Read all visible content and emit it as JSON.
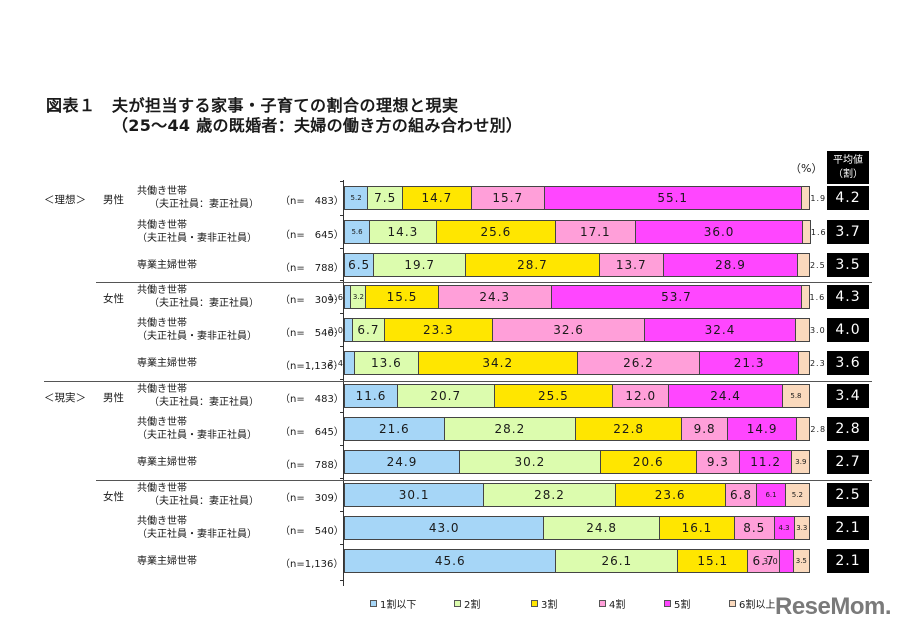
{
  "title": {
    "figure": "図表１",
    "main": "夫が担当する家事・子育ての割合の理想と現実",
    "sub": "（25～44 歳の既婚者：夫婦の働き方の組み合わせ別）"
  },
  "unit_label": "（%）",
  "avg_header": [
    "平均値",
    "（割）"
  ],
  "colors": {
    "c1": "#a6d6f7",
    "c2": "#dcfcae",
    "c3": "#ffe600",
    "c4": "#ff9fd9",
    "c5": "#ff46ff",
    "c6": "#fad9bd"
  },
  "legend": [
    {
      "label": "1割以下",
      "color": "#a6d6f7"
    },
    {
      "label": "2割",
      "color": "#dcfcae"
    },
    {
      "label": "3割",
      "color": "#ffe600"
    },
    {
      "label": "4割",
      "color": "#ff9fd9"
    },
    {
      "label": "5割",
      "color": "#ff46ff"
    },
    {
      "label": "6割以上",
      "color": "#fad9bd"
    }
  ],
  "logo": "ReseMom.",
  "sections": [
    {
      "label": "＜理想＞",
      "genders": [
        {
          "label": "男性"
        },
        {
          "label": "女性"
        }
      ]
    },
    {
      "label": "＜現実＞",
      "genders": [
        {
          "label": "男性"
        },
        {
          "label": "女性"
        }
      ]
    }
  ],
  "rows": [
    {
      "cat1": "共働き世帯",
      "cat2": "（夫正社員：妻正社員）",
      "n": "（n=　483）",
      "values": [
        5.2,
        7.5,
        14.7,
        15.7,
        55.1,
        1.9
      ],
      "labels": [
        "5.2",
        "7.5",
        "14.7",
        "15.7",
        "55.1",
        "1.9"
      ],
      "avg": "4.2"
    },
    {
      "cat1": "共働き世帯",
      "cat2": "（夫正社員・妻非正社員）",
      "n": "（n=　645）",
      "values": [
        5.6,
        14.3,
        25.6,
        17.1,
        36.0,
        1.6
      ],
      "labels": [
        "5.6",
        "14.3",
        "25.6",
        "17.1",
        "36.0",
        "1.6"
      ],
      "avg": "3.7"
    },
    {
      "cat1": "専業主婦世帯",
      "cat2": "",
      "n": "（n=　788）",
      "values": [
        6.5,
        19.7,
        28.7,
        13.7,
        28.9,
        2.5
      ],
      "labels": [
        "6.5",
        "19.7",
        "28.7",
        "13.7",
        "28.9",
        "2.5"
      ],
      "avg": "3.5"
    },
    {
      "cat1": "共働き世帯",
      "cat2": "（夫正社員：妻正社員）",
      "n": "（n=　309）",
      "values": [
        1.6,
        3.2,
        15.5,
        24.3,
        53.7,
        1.6
      ],
      "labels": [
        "1.6",
        "3.2",
        "15.5",
        "24.3",
        "53.7",
        "1.6"
      ],
      "avg": "4.3"
    },
    {
      "cat1": "共働き世帯",
      "cat2": "（夫正社員・妻非正社員）",
      "n": "（n=　540）",
      "values": [
        2.0,
        6.7,
        23.3,
        32.6,
        32.4,
        3.0
      ],
      "labels": [
        "2.0",
        "6.7",
        "23.3",
        "32.6",
        "32.4",
        "3.0"
      ],
      "avg": "4.0"
    },
    {
      "cat1": "専業主婦世帯",
      "cat2": "",
      "n": "（n=1,136）",
      "values": [
        2.4,
        13.6,
        34.2,
        26.2,
        21.3,
        2.3
      ],
      "labels": [
        "2.4",
        "13.6",
        "34.2",
        "26.2",
        "21.3",
        "2.3"
      ],
      "avg": "3.6"
    },
    {
      "cat1": "共働き世帯",
      "cat2": "（夫正社員：妻正社員）",
      "n": "（n=　483）",
      "values": [
        11.6,
        20.7,
        25.5,
        12.0,
        24.4,
        5.8
      ],
      "labels": [
        "11.6",
        "20.7",
        "25.5",
        "12.0",
        "24.4",
        "5.8"
      ],
      "avg": "3.4"
    },
    {
      "cat1": "共働き世帯",
      "cat2": "（夫正社員・妻非正社員）",
      "n": "（n=　645）",
      "values": [
        21.6,
        28.2,
        22.8,
        9.8,
        14.9,
        2.8
      ],
      "labels": [
        "21.6",
        "28.2",
        "22.8",
        "9.8",
        "14.9",
        "2.8"
      ],
      "avg": "2.8"
    },
    {
      "cat1": "専業主婦世帯",
      "cat2": "",
      "n": "（n=　788）",
      "values": [
        24.9,
        30.2,
        20.6,
        9.3,
        11.2,
        3.9
      ],
      "labels": [
        "24.9",
        "30.2",
        "20.6",
        "9.3",
        "11.2",
        "3.9"
      ],
      "avg": "2.7"
    },
    {
      "cat1": "共働き世帯",
      "cat2": "（夫正社員：妻正社員）",
      "n": "（n=　309）",
      "values": [
        30.1,
        28.2,
        23.6,
        6.8,
        6.1,
        5.2
      ],
      "labels": [
        "30.1",
        "28.2",
        "23.6",
        "6.8",
        "6.1",
        "5.2"
      ],
      "avg": "2.5"
    },
    {
      "cat1": "共働き世帯",
      "cat2": "（夫正社員・妻非正社員）",
      "n": "（n=　540）",
      "values": [
        43.0,
        24.8,
        16.1,
        8.5,
        4.3,
        3.3
      ],
      "labels": [
        "43.0",
        "24.8",
        "16.1",
        "8.5",
        "4.3",
        "3.3"
      ],
      "avg": "2.1"
    },
    {
      "cat1": "専業主婦世帯",
      "cat2": "",
      "n": "（n=1,136）",
      "values": [
        45.6,
        26.1,
        15.1,
        6.7,
        3.0,
        3.5
      ],
      "labels": [
        "45.6",
        "26.1",
        "15.1",
        "6.7",
        "3.0",
        "3.5"
      ],
      "avg": "2.1"
    }
  ],
  "chart_data": {
    "type": "bar",
    "orientation": "horizontal-stacked-100",
    "title": "図表１ 夫が担当する家事・子育ての割合の理想と現実（25～44 歳の既婚者：夫婦の働き方の組み合わせ別）",
    "xlabel": "",
    "ylabel": "",
    "unit": "%",
    "xlim": [
      0,
      100
    ],
    "grid": false,
    "legend_position": "bottom",
    "categories": [
      "理想・男性・共働き世帯（夫正社員：妻正社員）(n=483)",
      "理想・男性・共働き世帯（夫正社員・妻非正社員）(n=645)",
      "理想・男性・専業主婦世帯 (n=788)",
      "理想・女性・共働き世帯（夫正社員：妻正社員）(n=309)",
      "理想・女性・共働き世帯（夫正社員・妻非正社員）(n=540)",
      "理想・女性・専業主婦世帯 (n=1,136)",
      "現実・男性・共働き世帯（夫正社員：妻正社員）(n=483)",
      "現実・男性・共働き世帯（夫正社員・妻非正社員）(n=645)",
      "現実・男性・専業主婦世帯 (n=788)",
      "現実・女性・共働き世帯（夫正社員：妻正社員）(n=309)",
      "現実・女性・共働き世帯（夫正社員・妻非正社員）(n=540)",
      "現実・女性・専業主婦世帯 (n=1,136)"
    ],
    "series": [
      {
        "name": "1割以下",
        "values": [
          5.2,
          5.6,
          6.5,
          1.6,
          2.0,
          2.4,
          11.6,
          21.6,
          24.9,
          30.1,
          43.0,
          45.6
        ]
      },
      {
        "name": "2割",
        "values": [
          7.5,
          14.3,
          19.7,
          3.2,
          6.7,
          13.6,
          20.7,
          28.2,
          30.2,
          28.2,
          24.8,
          26.1
        ]
      },
      {
        "name": "3割",
        "values": [
          14.7,
          25.6,
          28.7,
          15.5,
          23.3,
          34.2,
          25.5,
          22.8,
          20.6,
          23.6,
          16.1,
          15.1
        ]
      },
      {
        "name": "4割",
        "values": [
          15.7,
          17.1,
          13.7,
          24.3,
          32.6,
          26.2,
          12.0,
          9.8,
          9.3,
          6.8,
          8.5,
          6.7
        ]
      },
      {
        "name": "5割",
        "values": [
          55.1,
          36.0,
          28.9,
          53.7,
          32.4,
          21.3,
          24.4,
          14.9,
          11.2,
          6.1,
          4.3,
          3.0
        ]
      },
      {
        "name": "6割以上",
        "values": [
          1.9,
          1.6,
          2.5,
          1.6,
          3.0,
          2.3,
          5.8,
          2.8,
          3.9,
          5.2,
          3.3,
          3.5
        ]
      }
    ],
    "extra_column": {
      "name": "平均値（割）",
      "values": [
        4.2,
        3.7,
        3.5,
        4.3,
        4.0,
        3.6,
        3.4,
        2.8,
        2.7,
        2.5,
        2.1,
        2.1
      ]
    }
  }
}
